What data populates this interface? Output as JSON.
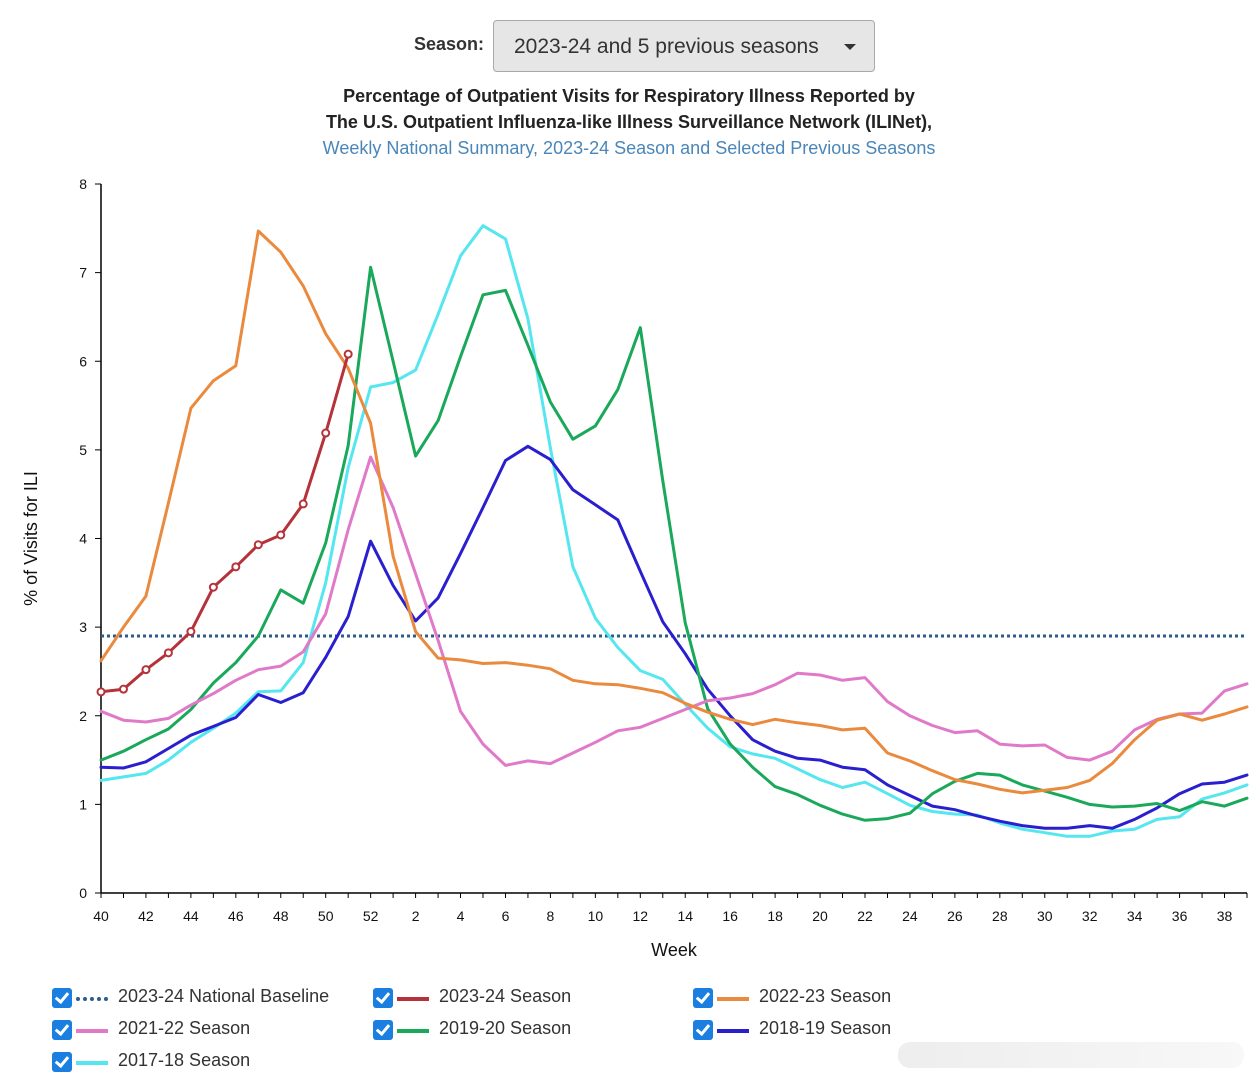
{
  "season_selector": {
    "label": "Season:",
    "value": "2023-24 and 5 previous seasons"
  },
  "title": {
    "line1": "Percentage of Outpatient Visits for Respiratory Illness Reported by",
    "line2": "The U.S. Outpatient Influenza-like Illness Surveillance Network (ILINet),",
    "line3": "Weekly National Summary, 2023-24 Season and Selected Previous Seasons"
  },
  "chart_data": {
    "type": "line",
    "ylabel": "% of Visits for ILI",
    "xlabel": "Week",
    "ylim": [
      0,
      8
    ],
    "yticks": [
      "0",
      "1",
      "2",
      "3",
      "4",
      "5",
      "6",
      "7",
      "8"
    ],
    "weeks": [
      40,
      41,
      42,
      43,
      44,
      45,
      46,
      47,
      48,
      49,
      50,
      51,
      52,
      1,
      2,
      3,
      4,
      5,
      6,
      7,
      8,
      9,
      10,
      11,
      12,
      13,
      14,
      15,
      16,
      17,
      18,
      19,
      20,
      21,
      22,
      23,
      24,
      25,
      26,
      27,
      28,
      29,
      30,
      31,
      32,
      33,
      34,
      35,
      36,
      37,
      38,
      39
    ],
    "xtick_labels": [
      "40",
      "42",
      "44",
      "46",
      "48",
      "50",
      "52",
      "2",
      "4",
      "6",
      "8",
      "10",
      "12",
      "14",
      "16",
      "18",
      "20",
      "22",
      "24",
      "26",
      "28",
      "30",
      "32",
      "34",
      "36",
      "38"
    ],
    "baseline": {
      "name": "2023-24 National Baseline",
      "value": 2.9,
      "color": "#2e5c8a"
    },
    "series": [
      {
        "name": "2023-24 Season",
        "color": "#b5323a",
        "markers": true,
        "values": [
          2.27,
          2.3,
          2.52,
          2.71,
          2.95,
          3.45,
          3.68,
          3.93,
          4.04,
          4.39,
          5.19,
          6.08
        ]
      },
      {
        "name": "2022-23 Season",
        "color": "#ea8a3e",
        "values": [
          2.62,
          3.0,
          3.35,
          4.4,
          5.47,
          5.78,
          5.95,
          7.47,
          7.23,
          6.85,
          6.31,
          5.92,
          5.3,
          3.8,
          2.95,
          2.65,
          2.63,
          2.59,
          2.6,
          2.57,
          2.53,
          2.4,
          2.36,
          2.35,
          2.31,
          2.26,
          2.14,
          2.04,
          1.96,
          1.9,
          1.96,
          1.92,
          1.89,
          1.84,
          1.86,
          1.58,
          1.49,
          1.38,
          1.28,
          1.23,
          1.17,
          1.13,
          1.16,
          1.19,
          1.27,
          1.46,
          1.73,
          1.95,
          2.02,
          1.95,
          2.02,
          2.1
        ]
      },
      {
        "name": "2021-22 Season",
        "color": "#e07ac8",
        "values": [
          2.05,
          1.95,
          1.93,
          1.97,
          2.12,
          2.25,
          2.4,
          2.52,
          2.56,
          2.72,
          3.15,
          4.1,
          4.92,
          4.35,
          3.6,
          2.85,
          2.05,
          1.68,
          1.44,
          1.49,
          1.46,
          1.58,
          1.7,
          1.83,
          1.87,
          1.97,
          2.07,
          2.17,
          2.2,
          2.25,
          2.35,
          2.48,
          2.46,
          2.4,
          2.43,
          2.16,
          2.0,
          1.89,
          1.81,
          1.83,
          1.68,
          1.66,
          1.67,
          1.53,
          1.5,
          1.6,
          1.84,
          1.96,
          2.02,
          2.03,
          2.28,
          2.36
        ]
      },
      {
        "name": "2019-20 Season",
        "color": "#1aa85a",
        "values": [
          1.5,
          1.6,
          1.73,
          1.85,
          2.07,
          2.37,
          2.6,
          2.9,
          3.42,
          3.27,
          3.95,
          5.05,
          7.06,
          6.0,
          4.93,
          5.33,
          6.05,
          6.75,
          6.8,
          6.18,
          5.54,
          5.12,
          5.27,
          5.68,
          6.38,
          4.65,
          3.05,
          2.08,
          1.68,
          1.42,
          1.2,
          1.11,
          0.99,
          0.89,
          0.82,
          0.84,
          0.9,
          1.12,
          1.26,
          1.35,
          1.33,
          1.22,
          1.15,
          1.08,
          1.0,
          0.97,
          0.98,
          1.01,
          0.93,
          1.03,
          0.98,
          1.07
        ]
      },
      {
        "name": "2018-19 Season",
        "color": "#2a1fcf",
        "values": [
          1.42,
          1.41,
          1.48,
          1.63,
          1.78,
          1.88,
          1.98,
          2.24,
          2.15,
          2.26,
          2.66,
          3.12,
          3.97,
          3.47,
          3.07,
          3.33,
          3.83,
          4.35,
          4.88,
          5.04,
          4.89,
          4.55,
          4.38,
          4.21,
          3.63,
          3.06,
          2.7,
          2.3,
          2.0,
          1.73,
          1.6,
          1.52,
          1.5,
          1.42,
          1.39,
          1.22,
          1.1,
          0.98,
          0.94,
          0.87,
          0.81,
          0.76,
          0.73,
          0.73,
          0.76,
          0.73,
          0.83,
          0.96,
          1.12,
          1.23,
          1.25,
          1.33
        ]
      },
      {
        "name": "2017-18 Season",
        "color": "#55e6ef",
        "values": [
          1.27,
          1.31,
          1.35,
          1.5,
          1.7,
          1.86,
          2.03,
          2.27,
          2.28,
          2.6,
          3.5,
          4.8,
          5.71,
          5.76,
          5.9,
          6.53,
          7.19,
          7.53,
          7.38,
          6.48,
          5.02,
          3.68,
          3.1,
          2.77,
          2.51,
          2.41,
          2.13,
          1.86,
          1.65,
          1.57,
          1.52,
          1.4,
          1.28,
          1.19,
          1.25,
          1.12,
          0.99,
          0.92,
          0.89,
          0.88,
          0.79,
          0.72,
          0.68,
          0.64,
          0.64,
          0.7,
          0.72,
          0.83,
          0.86,
          1.06,
          1.13,
          1.22
        ]
      }
    ]
  },
  "legend": [
    {
      "label": "2023-24 National Baseline",
      "color": "#2e5c8a",
      "dotted": true
    },
    {
      "label": "2023-24 Season",
      "color": "#b5323a"
    },
    {
      "label": "2022-23 Season",
      "color": "#ea8a3e"
    },
    {
      "label": "2021-22 Season",
      "color": "#e07ac8"
    },
    {
      "label": "2019-20 Season",
      "color": "#1aa85a"
    },
    {
      "label": "2018-19 Season",
      "color": "#2a1fcf"
    },
    {
      "label": "2017-18 Season",
      "color": "#55e6ef"
    }
  ]
}
